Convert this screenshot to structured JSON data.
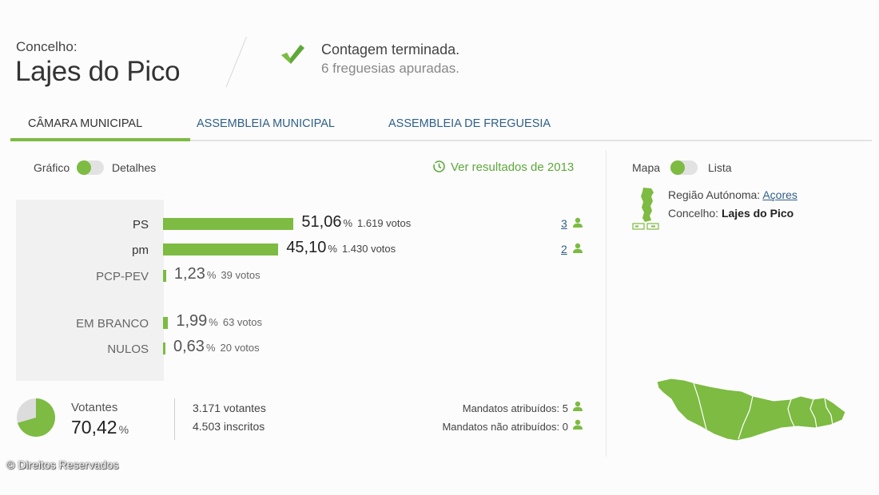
{
  "header": {
    "label": "Concelho:",
    "name": "Lajes do Pico",
    "status_title": "Contagem terminada.",
    "status_subtitle": "6 freguesias apuradas."
  },
  "tabs": [
    {
      "label": "CÂMARA MUNICIPAL",
      "active": true
    },
    {
      "label": "ASSEMBLEIA MUNICIPAL",
      "active": false
    },
    {
      "label": "ASSEMBLEIA DE FREGUESIA",
      "active": false
    }
  ],
  "view_toggle": {
    "left": "Gráfico",
    "right": "Detalhes"
  },
  "previous_results_link": "Ver resultados de 2013",
  "results": [
    {
      "party": "PS",
      "pct": "51,06",
      "pct_symbol": "%",
      "votes": "1.619 votos",
      "seats": "3"
    },
    {
      "party": "pm",
      "pct": "45,10",
      "pct_symbol": "%",
      "votes": "1.430 votos",
      "seats": "2"
    },
    {
      "party": "PCP-PEV",
      "pct": "1,23",
      "pct_symbol": "%",
      "votes": "39 votos",
      "seats": ""
    },
    {
      "party": "EM BRANCO",
      "pct": "1,99",
      "pct_symbol": "%",
      "votes": "63 votos",
      "seats": ""
    },
    {
      "party": "NULOS",
      "pct": "0,63",
      "pct_symbol": "%",
      "votes": "20 votos",
      "seats": ""
    }
  ],
  "chart_data": {
    "type": "bar",
    "categories": [
      "PS",
      "pm",
      "PCP-PEV",
      "EM BRANCO",
      "NULOS"
    ],
    "values": [
      51.06,
      45.1,
      1.23,
      1.99,
      0.63
    ],
    "votes": [
      1619,
      1430,
      39,
      63,
      20
    ],
    "seats": [
      3,
      2,
      0,
      0,
      0
    ],
    "xlabel": "",
    "ylabel": "%",
    "xlim": [
      0,
      100
    ]
  },
  "turnout": {
    "label": "Votantes",
    "pct": "70,42",
    "pct_symbol": "%",
    "pct_value": 70.42,
    "voters": "3.171 votantes",
    "registered": "4.503 inscritos"
  },
  "mandates": {
    "assigned": "Mandatos atribuídos: 5",
    "unassigned": "Mandatos não atribuídos: 0"
  },
  "map_toggle": {
    "left": "Mapa",
    "right": "Lista"
  },
  "region": {
    "label": "Região Autónoma:",
    "link": "Açores",
    "county_label": "Concelho:",
    "county": "Lajes do Pico"
  },
  "copyright": "© Direitos Reservados",
  "colors": {
    "accent": "#7dbb42",
    "link": "#2f5f86",
    "bar_bg": "#f1f1f1"
  }
}
